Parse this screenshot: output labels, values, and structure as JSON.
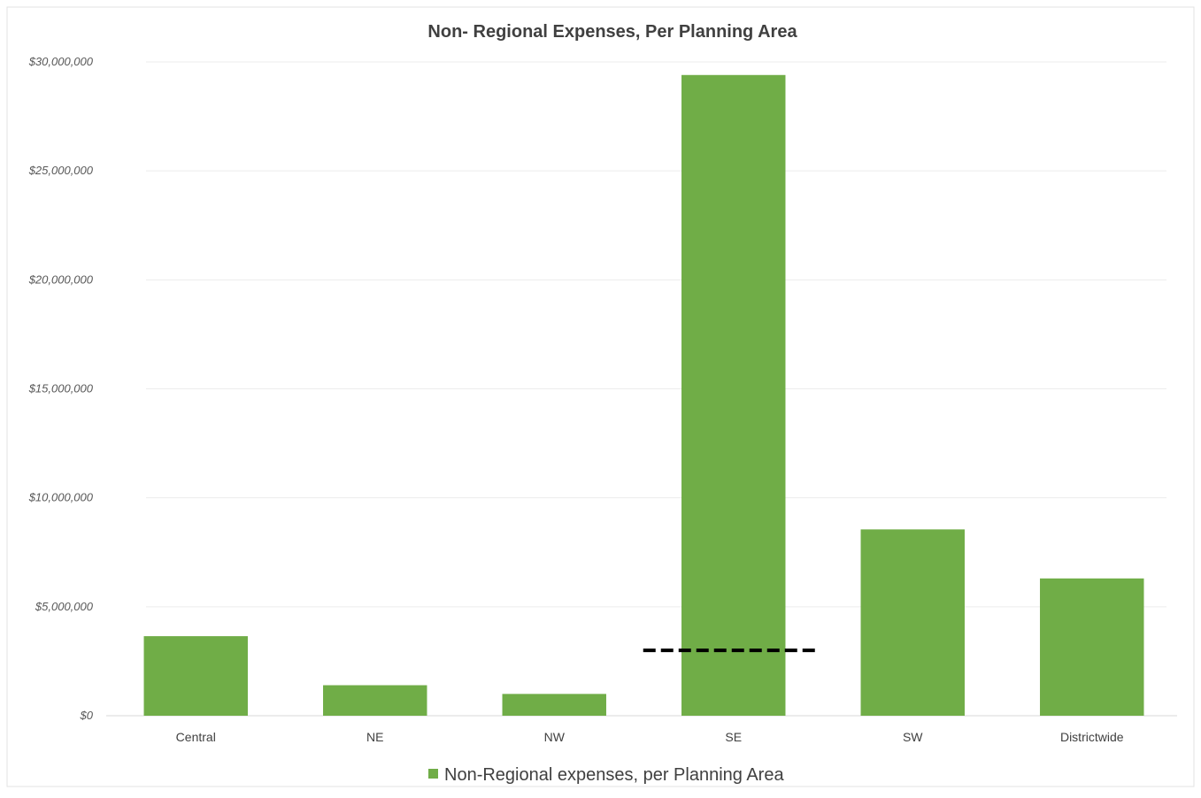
{
  "chart_data": {
    "type": "bar",
    "title": "Non- Regional Expenses, Per Planning Area",
    "xlabel": "",
    "ylabel": "",
    "categories": [
      "Central",
      "NE",
      "NW",
      "SE",
      "SW",
      "Districtwide"
    ],
    "series": [
      {
        "name": "Non-Regional expenses, per Planning Area",
        "values": [
          3650000,
          1400000,
          1000000,
          29400000,
          8550000,
          6300000
        ],
        "color": "#70ad47"
      }
    ],
    "ylim": [
      0,
      30000000
    ],
    "yticks": [
      0,
      5000000,
      10000000,
      15000000,
      20000000,
      25000000,
      30000000
    ],
    "ytick_labels": [
      "$0",
      "$5,000,000",
      "$10,000,000",
      "$15,000,000",
      "$20,000,000",
      "$25,000,000",
      "$30,000,000"
    ],
    "grid": true,
    "legend_position": "bottom",
    "annotation": {
      "type": "dashed-line",
      "y": 3000000,
      "color": "#000000"
    }
  }
}
